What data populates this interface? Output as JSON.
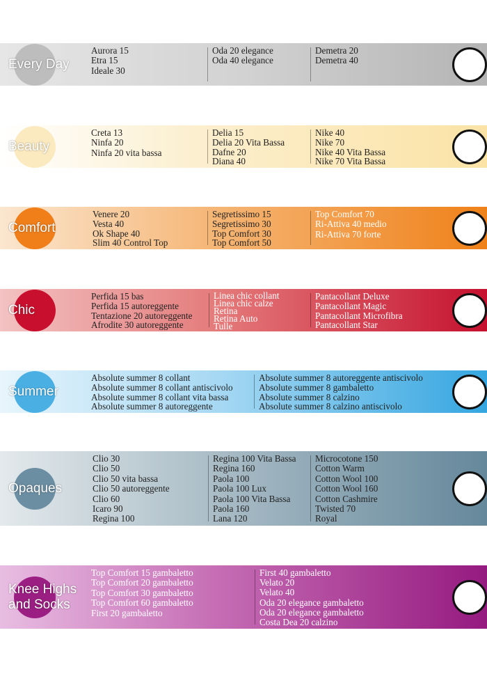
{
  "sections": [
    {
      "title_lines": [
        "Every Day"
      ],
      "columns": [
        [
          "Aurora 15",
          "Etra 15",
          "Ideale 30"
        ],
        [
          "Oda 20 elegance",
          "Oda 40 elegance"
        ],
        [
          "Demetra 20",
          "Demetra 40"
        ]
      ]
    },
    {
      "title_lines": [
        "Beauty"
      ],
      "columns": [
        [
          "Creta 13",
          "Ninfa 20",
          "Ninfa 20 vita bassa"
        ],
        [
          "Delia 15",
          "Delia 20 Vita Bassa",
          "Dafne 20",
          "Diana 40"
        ],
        [
          "Nike 40",
          "Nike 70",
          "Nike 40 Vita Bassa",
          "Nike 70 Vita Bassa"
        ]
      ]
    },
    {
      "title_lines": [
        "Comfort"
      ],
      "columns": [
        [
          "Venere 20",
          "Vesta 40",
          "Ok Shape 40",
          "Slim 40 Control Top"
        ],
        [
          "Segretissimo 15",
          "Segretissimo 30",
          "Top Comfort 30",
          "Top Comfort 50"
        ],
        [
          "Top Comfort 70",
          "Ri-Attiva 40 medio",
          "Ri-Attiva 70 forte"
        ]
      ]
    },
    {
      "title_lines": [
        "Chic"
      ],
      "columns": [
        [
          "Perfida 15 bas",
          "Perfida 15 autoreggente",
          "Tentazione 20 autoreggente",
          "Afrodite 30 autoreggente"
        ],
        [
          "Linea chic collant",
          "Linea chic calze",
          "Retina",
          "Retina Auto",
          "Tulle"
        ],
        [
          "Pantacollant Deluxe",
          "Pantacollant Magic",
          "Pantacollant Microfibra",
          "Pantacollant Star"
        ]
      ]
    },
    {
      "title_lines": [
        "Summer"
      ],
      "columns": [
        [
          "Absolute summer 8 collant",
          "Absolute summer 8 collant antiscivolo",
          "Absolute summer 8 collant vita bassa",
          "Absolute summer 8 autoreggente"
        ],
        [
          "Absolute summer 8 autoreggente antiscivolo",
          "Absolute summer 8 gambaletto",
          "Absolute summer 8 calzino",
          "Absolute summer 8 calzino antiscivolo"
        ]
      ]
    },
    {
      "title_lines": [
        "Opaques"
      ],
      "columns": [
        [
          "Clio 30",
          "Clio 50",
          "Clio 50 vita bassa",
          "Clio 50 autoreggente",
          "Clio 60",
          "Icaro 90",
          "Regina 100"
        ],
        [
          "Regina 100 Vita Bassa",
          "Regina 160",
          "Paola 100",
          "Paola 100 Lux",
          "Paola 100 Vita Bassa",
          "Paola 160",
          "Lana 120"
        ],
        [
          "Microcotone 150",
          "Cotton Warm",
          "Cotton Wool 100",
          "Cotton Wool 160",
          "Cotton Cashmire",
          "Twisted 70",
          "Royal"
        ]
      ]
    },
    {
      "title_lines": [
        "Knee Highs",
        "and Socks"
      ],
      "columns": [
        [
          "Top Comfort 15 gambaletto",
          "Top Comfort 20 gambaletto",
          "Top Comfort 30 gambaletto",
          "Top Comfort 60 gambaletto",
          "First 20 gambaletto"
        ],
        [
          "First 40 gambaletto",
          "Velato 20",
          "Velato 40",
          "Oda 20 elegance gambaletto",
          "Oda 20 elegance gambaletto",
          "Costa Dea 20 calzino"
        ]
      ]
    }
  ]
}
